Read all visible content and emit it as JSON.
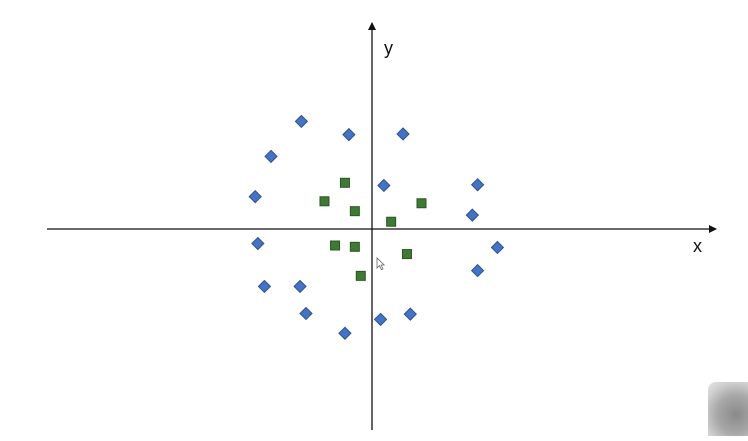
{
  "axes": {
    "x_label": "x",
    "y_label": "y"
  },
  "colors": {
    "diamond": "#4472c4",
    "square": "#3f7a34",
    "axis": "#111111"
  },
  "chart_data": {
    "type": "scatter",
    "xlim": [
      -5,
      5
    ],
    "ylim": [
      -3.3,
      3.3
    ],
    "grid": false,
    "series": [
      {
        "marker": "diamond",
        "color": "#4472c4",
        "points": [
          [
            -1.07,
            1.63
          ],
          [
            -0.35,
            1.43
          ],
          [
            0.47,
            1.44
          ],
          [
            -1.53,
            1.1
          ],
          [
            0.18,
            0.66
          ],
          [
            1.6,
            0.67
          ],
          [
            -1.77,
            0.49
          ],
          [
            1.52,
            0.21
          ],
          [
            -1.73,
            -0.22
          ],
          [
            1.9,
            -0.28
          ],
          [
            1.6,
            -0.63
          ],
          [
            -1.63,
            -0.87
          ],
          [
            -1.09,
            -0.87
          ],
          [
            -1.0,
            -1.28
          ],
          [
            0.58,
            -1.29
          ],
          [
            0.13,
            -1.37
          ],
          [
            -0.41,
            -1.58
          ]
        ]
      },
      {
        "marker": "square",
        "color": "#3f7a34",
        "points": [
          [
            -0.41,
            0.7
          ],
          [
            -0.72,
            0.42
          ],
          [
            -0.26,
            0.27
          ],
          [
            0.75,
            0.39
          ],
          [
            0.29,
            0.11
          ],
          [
            -0.56,
            -0.25
          ],
          [
            -0.26,
            -0.27
          ],
          [
            0.53,
            -0.38
          ],
          [
            -0.17,
            -0.71
          ]
        ]
      }
    ]
  }
}
